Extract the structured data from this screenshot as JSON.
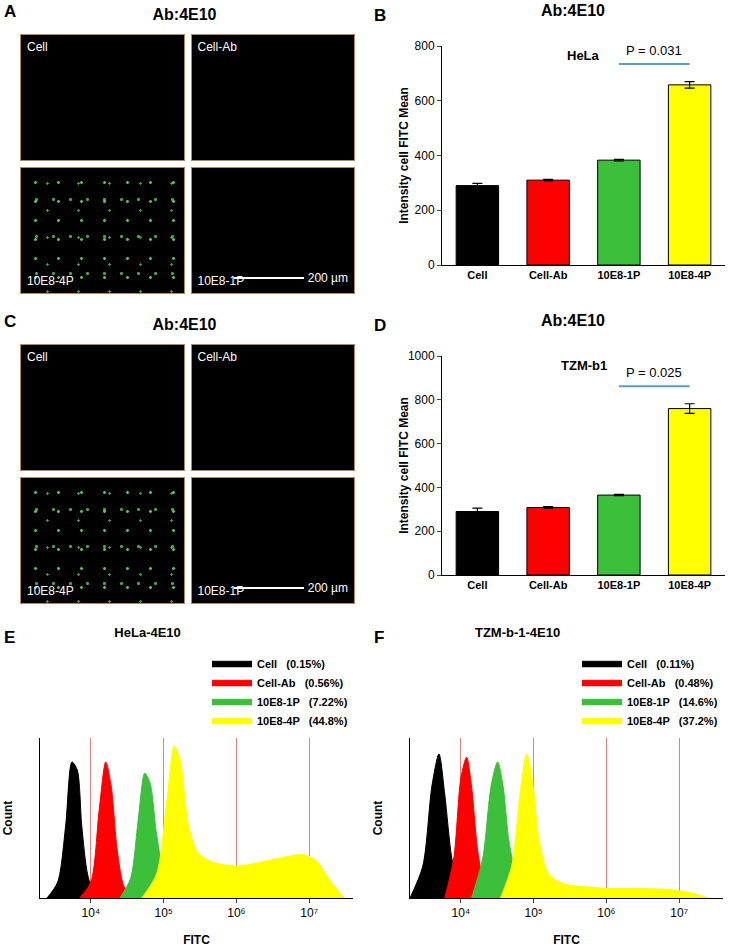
{
  "micrographs": [
    {
      "panel": "A",
      "title": "Ab:4E10",
      "tiles": [
        "Cell",
        "Cell-Ab",
        "10E8-4P",
        "10E8-1P"
      ],
      "scale_bar": "200 µm"
    },
    {
      "panel": "C",
      "title": "Ab:4E10",
      "tiles": [
        "Cell",
        "Cell-Ab",
        "10E8-4P",
        "10E8-1P"
      ],
      "scale_bar": "200 µm"
    }
  ],
  "chart_data": [
    {
      "panel": "B",
      "type": "bar",
      "title": "Ab:4E10",
      "subtitle": "HeLa",
      "y_label": "Intensity cell FITC Mean",
      "categories": [
        "Cell",
        "Cell-Ab",
        "10E8-1P",
        "10E8-4P"
      ],
      "values": [
        290,
        310,
        383,
        658
      ],
      "errors": [
        8,
        3,
        3,
        12
      ],
      "colors": [
        "#000000",
        "#ff0000",
        "#3cc03c",
        "#ffff00"
      ],
      "ylim": [
        0,
        800
      ],
      "yticks": [
        0,
        200,
        400,
        600,
        800
      ],
      "annotations": [
        {
          "text": "P = 0.031",
          "between": [
            "10E8-1P",
            "10E8-4P"
          ]
        }
      ]
    },
    {
      "panel": "D",
      "type": "bar",
      "title": "Ab:4E10",
      "subtitle": "TZM-b1",
      "y_label": "Intensity cell FITC Mean",
      "categories": [
        "Cell",
        "Cell-Ab",
        "10E8-1P",
        "10E8-4P"
      ],
      "values": [
        290,
        308,
        365,
        760
      ],
      "errors": [
        15,
        4,
        3,
        22
      ],
      "colors": [
        "#000000",
        "#ff0000",
        "#3cc03c",
        "#ffff00"
      ],
      "ylim": [
        0,
        1000
      ],
      "yticks": [
        0,
        200,
        400,
        600,
        800,
        1000
      ],
      "annotations": [
        {
          "text": "P = 0.025",
          "between": [
            "10E8-1P",
            "10E8-4P"
          ]
        }
      ]
    },
    {
      "panel": "E",
      "type": "area",
      "title": "HeLa-4E10",
      "x_label": "FITC",
      "y_label": "Count",
      "log": "x",
      "xlim": [
        2000,
        40000000
      ],
      "xticks": [
        {
          "value": 10000,
          "label": "10⁴"
        },
        {
          "value": 100000,
          "label": "10⁵"
        },
        {
          "value": 1000000,
          "label": "10⁶"
        },
        {
          "value": 10000000,
          "label": "10⁷"
        }
      ],
      "ylim": [
        0,
        100
      ],
      "tick_labels": "x",
      "legend": "top right",
      "series": [
        {
          "name": "Cell",
          "label": "(0.15%)",
          "color": "#000000",
          "x": [
            2500,
            3500,
            4500,
            5500,
            6500,
            7500,
            9000,
            11000,
            14000
          ],
          "values": [
            0,
            10,
            45,
            85,
            80,
            45,
            15,
            3,
            0
          ]
        },
        {
          "name": "Cell-Ab",
          "label": "(0.56%)",
          "color": "#ff0000",
          "x": [
            7000,
            10000,
            13000,
            16000,
            19000,
            23000,
            28000,
            35000
          ],
          "values": [
            0,
            10,
            55,
            85,
            70,
            30,
            8,
            0
          ]
        },
        {
          "name": "10E8-1P",
          "label": "(7.22%)",
          "color": "#3cc03c",
          "x": [
            25000,
            35000,
            45000,
            55000,
            65000,
            80000,
            100000,
            150000,
            250000,
            500000
          ],
          "values": [
            0,
            12,
            50,
            78,
            72,
            40,
            18,
            8,
            4,
            0
          ]
        },
        {
          "name": "10E8-4P",
          "label": "(44.8%)",
          "color": "#ffff00",
          "x": [
            50000,
            80000,
            110000,
            140000,
            170000,
            220000,
            300000,
            500000,
            1000000,
            2000000,
            4000000,
            8000000,
            12000000,
            20000000,
            30000000
          ],
          "values": [
            0,
            15,
            60,
            95,
            85,
            45,
            28,
            22,
            20,
            22,
            25,
            27,
            24,
            10,
            0
          ]
        }
      ]
    },
    {
      "panel": "F",
      "type": "area",
      "title": "TZM-b-1-4E10",
      "x_label": "FITC",
      "y_label": "Count",
      "log": "x",
      "xlim": [
        2000,
        40000000
      ],
      "xticks": [
        {
          "value": 10000,
          "label": "10⁴"
        },
        {
          "value": 100000,
          "label": "10⁵"
        },
        {
          "value": 1000000,
          "label": "10⁶"
        },
        {
          "value": 10000000,
          "label": "10⁷"
        }
      ],
      "ylim": [
        0,
        100
      ],
      "tick_labels": "x",
      "legend": "top right",
      "series": [
        {
          "name": "Cell",
          "label": "(0.11%)",
          "color": "#000000",
          "x": [
            2000,
            3000,
            4000,
            5000,
            6000,
            7500,
            9500,
            12000
          ],
          "values": [
            0,
            20,
            70,
            90,
            65,
            25,
            5,
            0
          ]
        },
        {
          "name": "Cell-Ab",
          "label": "(0.48%)",
          "color": "#ff0000",
          "x": [
            6000,
            8000,
            10000,
            12000,
            14000,
            17000,
            21000,
            27000
          ],
          "values": [
            0,
            25,
            75,
            88,
            70,
            30,
            8,
            0
          ]
        },
        {
          "name": "10E8-1P",
          "label": "(14.6%)",
          "color": "#3cc03c",
          "x": [
            14000,
            20000,
            26000,
            32000,
            38000,
            46000,
            58000,
            80000,
            120000
          ],
          "values": [
            0,
            25,
            70,
            85,
            70,
            35,
            15,
            5,
            0
          ]
        },
        {
          "name": "10E8-4P",
          "label": "(37.2%)",
          "color": "#ffff00",
          "x": [
            35000,
            50000,
            65000,
            80000,
            95000,
            120000,
            160000,
            250000,
            500000,
            1000000,
            3000000,
            8000000,
            15000000,
            25000000
          ],
          "values": [
            0,
            20,
            65,
            90,
            75,
            35,
            15,
            9,
            7,
            6,
            6,
            5,
            3,
            0
          ]
        }
      ]
    }
  ]
}
